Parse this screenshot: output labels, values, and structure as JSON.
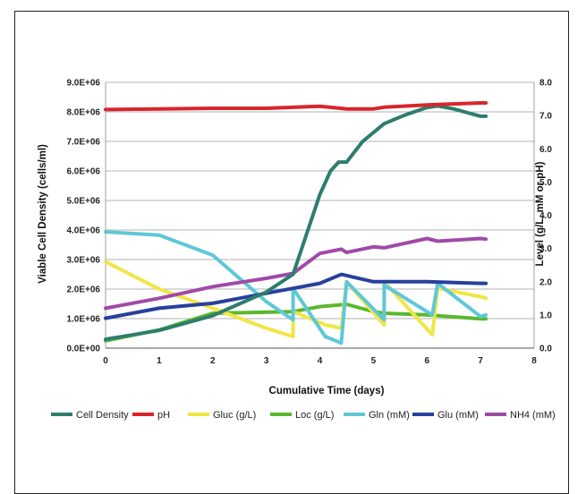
{
  "chart_data": {
    "type": "line",
    "xlabel": "Cumulative Time (days)",
    "ylabel_left": "Viable Cell Density (cells/ml)",
    "ylabel_right": "Level (g/L, mM or pH)",
    "xlim": [
      0,
      8
    ],
    "ylim_left": [
      0,
      9000000
    ],
    "ylim_right": [
      0,
      8
    ],
    "x_ticks": [
      "0",
      "1",
      "2",
      "3",
      "4",
      "5",
      "6",
      "7",
      "8"
    ],
    "y_left_ticks": [
      "0.0E+00",
      "1.0E+06",
      "2.0E+06",
      "3.0E+06",
      "4.0E+06",
      "5.0E+06",
      "6.0E+06",
      "7.0E+06",
      "8.0E+06",
      "9.0E+06"
    ],
    "y_right_ticks": [
      "0.0",
      "1.0",
      "2.0",
      "3.0",
      "4.0",
      "5.0",
      "6.0",
      "7.0",
      "8.0"
    ],
    "grid": "horizontal",
    "legend_position": "bottom",
    "series": [
      {
        "name": "Cell Density",
        "color": "#2e7d6e",
        "axis": "left",
        "points": [
          [
            0,
            300000
          ],
          [
            1,
            600000
          ],
          [
            2,
            1100000
          ],
          [
            2.5,
            1500000
          ],
          [
            3,
            1900000
          ],
          [
            3.5,
            2500000
          ],
          [
            4,
            5200000
          ],
          [
            4.2,
            6000000
          ],
          [
            4.35,
            6300000
          ],
          [
            4.5,
            6300000
          ],
          [
            4.8,
            7000000
          ],
          [
            5.2,
            7600000
          ],
          [
            5.6,
            7900000
          ],
          [
            6,
            8150000
          ],
          [
            6.2,
            8200000
          ],
          [
            6.5,
            8100000
          ],
          [
            7,
            7850000
          ],
          [
            7.1,
            7850000
          ]
        ]
      },
      {
        "name": "pH",
        "color": "#d9252a",
        "axis": "right",
        "points": [
          [
            0,
            7.18
          ],
          [
            1,
            7.2
          ],
          [
            2,
            7.22
          ],
          [
            3,
            7.22
          ],
          [
            4,
            7.28
          ],
          [
            4.5,
            7.2
          ],
          [
            5,
            7.2
          ],
          [
            5.2,
            7.25
          ],
          [
            6,
            7.32
          ],
          [
            7,
            7.38
          ],
          [
            7.1,
            7.38
          ]
        ]
      },
      {
        "name": "Gluc (g/L)",
        "color": "#f0e646",
        "axis": "right",
        "points": [
          [
            0,
            2.6
          ],
          [
            1,
            1.78
          ],
          [
            2,
            1.2
          ],
          [
            3,
            0.6
          ],
          [
            3.5,
            0.35
          ],
          [
            3.5,
            1.1
          ],
          [
            4.1,
            0.7
          ],
          [
            4.4,
            0.6
          ],
          [
            4.5,
            2.0
          ],
          [
            5.2,
            0.7
          ],
          [
            5.2,
            2.0
          ],
          [
            6.1,
            0.4
          ],
          [
            6.2,
            1.8
          ],
          [
            7,
            1.55
          ],
          [
            7.1,
            1.5
          ]
        ]
      },
      {
        "name": "Loc (g/L)",
        "color": "#5ab82e",
        "axis": "right",
        "points": [
          [
            0,
            0.22
          ],
          [
            1,
            0.55
          ],
          [
            2,
            1.05
          ],
          [
            3,
            1.08
          ],
          [
            3.5,
            1.1
          ],
          [
            4,
            1.25
          ],
          [
            4.5,
            1.32
          ],
          [
            5,
            1.1
          ],
          [
            5.2,
            1.05
          ],
          [
            6,
            1.0
          ],
          [
            7,
            0.88
          ],
          [
            7.1,
            0.88
          ]
        ]
      },
      {
        "name": "Gln (mM)",
        "color": "#5ec8d8",
        "axis": "right",
        "points": [
          [
            0,
            3.5
          ],
          [
            1,
            3.4
          ],
          [
            2,
            2.8
          ],
          [
            3,
            1.4
          ],
          [
            3.5,
            0.85
          ],
          [
            3.5,
            1.8
          ],
          [
            4.1,
            0.35
          ],
          [
            4.4,
            0.15
          ],
          [
            4.5,
            2.0
          ],
          [
            5.2,
            0.85
          ],
          [
            5.2,
            1.9
          ],
          [
            6.1,
            1.0
          ],
          [
            6.2,
            1.95
          ],
          [
            7,
            0.95
          ],
          [
            7.1,
            1.0
          ]
        ]
      },
      {
        "name": "Glu (mM)",
        "color": "#27409e",
        "axis": "right",
        "points": [
          [
            0,
            0.9
          ],
          [
            1,
            1.2
          ],
          [
            2,
            1.35
          ],
          [
            3,
            1.65
          ],
          [
            3.5,
            1.8
          ],
          [
            4,
            1.95
          ],
          [
            4.4,
            2.22
          ],
          [
            5,
            2.0
          ],
          [
            6,
            2.0
          ],
          [
            7,
            1.95
          ],
          [
            7.1,
            1.95
          ]
        ]
      },
      {
        "name": "NH4 (mM)",
        "color": "#a04aa8",
        "axis": "right",
        "points": [
          [
            0,
            1.2
          ],
          [
            1,
            1.5
          ],
          [
            2,
            1.85
          ],
          [
            3,
            2.1
          ],
          [
            3.5,
            2.25
          ],
          [
            4,
            2.85
          ],
          [
            4.4,
            2.98
          ],
          [
            4.5,
            2.88
          ],
          [
            5,
            3.05
          ],
          [
            5.2,
            3.02
          ],
          [
            6,
            3.3
          ],
          [
            6.2,
            3.22
          ],
          [
            7,
            3.3
          ],
          [
            7.1,
            3.28
          ]
        ]
      }
    ]
  }
}
